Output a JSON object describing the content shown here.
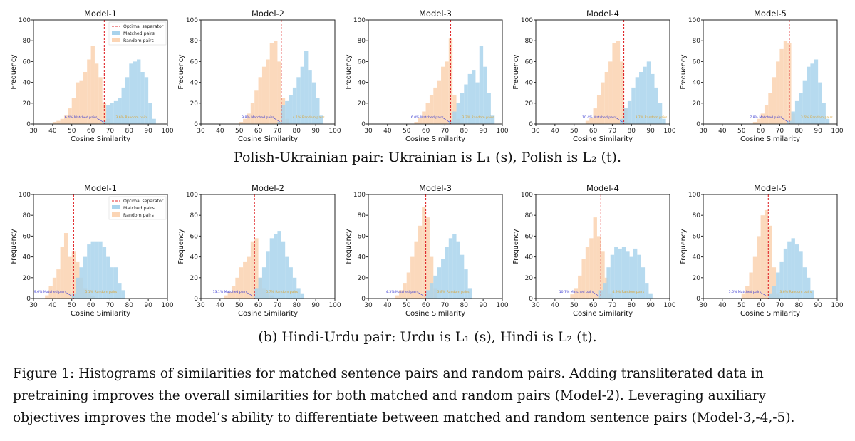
{
  "captions": {
    "top": "Polish-Ukrainian pair: Ukrainian is L₁ (s), Polish is L₂ (t).",
    "bottom": "(b) Hindi-Urdu pair: Urdu is L₁ (s), Hindi is L₂ (t).",
    "figure_line1": "Figure 1: Histograms of similarities for matched sentence pairs and random pairs. Adding transliterated data in",
    "figure_line2": "pretraining improves the overall similarities for both matched and random pairs (Model-2). Leveraging auxiliary",
    "figure_line3": "objectives improves the model’s ability to differentiate between matched and random sentence pairs (Model-3,-4,-5)."
  },
  "legend": {
    "separator": "Optimal separator",
    "matched": "Matched pairs",
    "random": "Random pairs"
  },
  "colors": {
    "matched": "#a9d3ec",
    "random": "#fbd5b5",
    "separator": "#e0282b",
    "annotation": "#3a3ad0",
    "annotation_right": "#d9a53a"
  },
  "chart_data": [
    {
      "type": "bar",
      "title": "Model-1",
      "row": 0,
      "xlabel": "Cosine Similarity",
      "ylabel": "Frequency",
      "xlim": [
        30,
        100
      ],
      "ylim": [
        0,
        100
      ],
      "xticks": [
        30,
        40,
        50,
        60,
        70,
        80,
        90,
        100
      ],
      "yticks": [
        0,
        20,
        40,
        60,
        80,
        100
      ],
      "separator": 67,
      "bin_width": 2,
      "series": [
        {
          "name": "Random pairs",
          "start": 40,
          "values": [
            2,
            3,
            5,
            8,
            15,
            25,
            40,
            42,
            50,
            62,
            75,
            58,
            45,
            20,
            5,
            1
          ]
        },
        {
          "name": "Matched pairs",
          "start": 66,
          "values": [
            3,
            18,
            20,
            22,
            25,
            35,
            45,
            58,
            60,
            62,
            50,
            45,
            20,
            5
          ]
        }
      ],
      "annotations": {
        "left": "6.4% Matched pairs",
        "right": "3.6% Random pairs"
      }
    },
    {
      "type": "bar",
      "title": "Model-2",
      "row": 0,
      "xlabel": "Cosine Similarity",
      "ylabel": "Frequency",
      "xlim": [
        30,
        100
      ],
      "ylim": [
        0,
        100
      ],
      "xticks": [
        30,
        40,
        50,
        60,
        70,
        80,
        90,
        100
      ],
      "yticks": [
        0,
        20,
        40,
        60,
        80,
        100
      ],
      "separator": 72,
      "bin_width": 2,
      "series": [
        {
          "name": "Random pairs",
          "start": 50,
          "values": [
            2,
            5,
            10,
            20,
            32,
            45,
            55,
            62,
            78,
            80,
            60,
            25,
            5
          ]
        },
        {
          "name": "Matched pairs",
          "start": 70,
          "values": [
            2,
            18,
            22,
            28,
            35,
            45,
            55,
            70,
            52,
            40,
            25,
            8
          ]
        }
      ],
      "annotations": {
        "left": "9.8% Matched pairs",
        "right": "4.1% Random pairs"
      }
    },
    {
      "type": "bar",
      "title": "Model-3",
      "row": 0,
      "xlabel": "Cosine Similarity",
      "ylabel": "Frequency",
      "xlim": [
        30,
        100
      ],
      "ylim": [
        0,
        100
      ],
      "xticks": [
        30,
        40,
        50,
        60,
        70,
        80,
        90,
        100
      ],
      "yticks": [
        0,
        20,
        40,
        60,
        80,
        100
      ],
      "separator": 73,
      "bin_width": 2,
      "series": [
        {
          "name": "Random pairs",
          "start": 54,
          "values": [
            2,
            6,
            12,
            20,
            28,
            35,
            42,
            55,
            60,
            82,
            28,
            5
          ]
        },
        {
          "name": "Matched pairs",
          "start": 72,
          "values": [
            3,
            12,
            20,
            30,
            38,
            48,
            52,
            40,
            75,
            55,
            30,
            8
          ]
        }
      ],
      "annotations": {
        "left": "6.0% Matched pairs",
        "right": "3.3% Random pairs"
      }
    },
    {
      "type": "bar",
      "title": "Model-4",
      "row": 0,
      "xlabel": "Cosine Similarity",
      "ylabel": "Frequency",
      "xlim": [
        30,
        100
      ],
      "ylim": [
        0,
        100
      ],
      "xticks": [
        30,
        40,
        50,
        60,
        70,
        80,
        90,
        100
      ],
      "yticks": [
        0,
        20,
        40,
        60,
        80,
        100
      ],
      "separator": 76,
      "bin_width": 2,
      "series": [
        {
          "name": "Random pairs",
          "start": 56,
          "values": [
            3,
            6,
            15,
            28,
            40,
            50,
            60,
            78,
            80,
            60,
            15
          ]
        },
        {
          "name": "Matched pairs",
          "start": 74,
          "values": [
            5,
            15,
            22,
            35,
            45,
            50,
            55,
            60,
            48,
            35,
            20,
            5
          ]
        }
      ],
      "annotations": {
        "left": "10.4% Matched pairs",
        "right": "3.7% Random pairs"
      }
    },
    {
      "type": "bar",
      "title": "Model-5",
      "row": 0,
      "xlabel": "Cosine Similarity",
      "ylabel": "Frequency",
      "xlim": [
        30,
        100
      ],
      "ylim": [
        0,
        100
      ],
      "xticks": [
        30,
        40,
        50,
        60,
        70,
        80,
        90,
        100
      ],
      "yticks": [
        0,
        20,
        40,
        60,
        80,
        100
      ],
      "separator": 75,
      "bin_width": 2,
      "series": [
        {
          "name": "Random pairs",
          "start": 56,
          "values": [
            2,
            5,
            10,
            18,
            30,
            45,
            60,
            72,
            80,
            78,
            10
          ]
        },
        {
          "name": "Matched pairs",
          "start": 74,
          "values": [
            3,
            12,
            22,
            30,
            42,
            55,
            58,
            62,
            40,
            20,
            5
          ]
        }
      ],
      "annotations": {
        "left": "7.8% Matched pairs",
        "right": "3.6% Random pairs"
      }
    },
    {
      "type": "bar",
      "title": "Model-1",
      "row": 1,
      "xlabel": "Cosine Similarity",
      "ylabel": "Frequency",
      "xlim": [
        30,
        100
      ],
      "ylim": [
        0,
        100
      ],
      "xticks": [
        30,
        40,
        50,
        60,
        70,
        80,
        90,
        100
      ],
      "yticks": [
        0,
        20,
        40,
        60,
        80,
        100
      ],
      "separator": 51,
      "bin_width": 2,
      "series": [
        {
          "name": "Random pairs",
          "start": 36,
          "values": [
            3,
            12,
            20,
            28,
            50,
            63,
            40,
            45,
            35,
            20,
            10,
            5,
            2
          ]
        },
        {
          "name": "Matched pairs",
          "start": 50,
          "values": [
            5,
            20,
            30,
            40,
            52,
            55,
            55,
            55,
            50,
            40,
            30,
            30,
            15,
            8
          ]
        }
      ],
      "annotations": {
        "left": "9.6% Matched pairs",
        "right": "5.1% Random pairs"
      }
    },
    {
      "type": "bar",
      "title": "Model-2",
      "row": 1,
      "xlabel": "Cosine Similarity",
      "ylabel": "Frequency",
      "xlim": [
        30,
        100
      ],
      "ylim": [
        0,
        100
      ],
      "xticks": [
        30,
        40,
        50,
        60,
        70,
        80,
        90,
        100
      ],
      "yticks": [
        0,
        20,
        40,
        60,
        80,
        100
      ],
      "separator": 58,
      "bin_width": 2,
      "series": [
        {
          "name": "Random pairs",
          "start": 42,
          "values": [
            3,
            6,
            12,
            20,
            30,
            35,
            40,
            55,
            58,
            20,
            10,
            5,
            3
          ]
        },
        {
          "name": "Matched pairs",
          "start": 58,
          "values": [
            10,
            20,
            30,
            45,
            58,
            62,
            65,
            55,
            40,
            30,
            20,
            10,
            5
          ]
        }
      ],
      "annotations": {
        "left": "13.1% Matched pairs",
        "right": "5.7% Random pairs"
      }
    },
    {
      "type": "bar",
      "title": "Model-3",
      "row": 1,
      "xlabel": "Cosine Similarity",
      "ylabel": "Frequency",
      "xlim": [
        30,
        100
      ],
      "ylim": [
        0,
        100
      ],
      "xticks": [
        30,
        40,
        50,
        60,
        70,
        80,
        90,
        100
      ],
      "yticks": [
        0,
        20,
        40,
        60,
        80,
        100
      ],
      "separator": 60,
      "bin_width": 2,
      "series": [
        {
          "name": "Random pairs",
          "start": 44,
          "values": [
            3,
            8,
            15,
            25,
            40,
            55,
            70,
            88,
            78,
            40,
            10
          ]
        },
        {
          "name": "Matched pairs",
          "start": 60,
          "values": [
            8,
            15,
            22,
            30,
            38,
            50,
            58,
            62,
            55,
            42,
            28,
            10
          ]
        }
      ],
      "annotations": {
        "left": "4.3% Matched pairs",
        "right": "3.8% Random pairs"
      }
    },
    {
      "type": "bar",
      "title": "Model-4",
      "row": 1,
      "xlabel": "Cosine Similarity",
      "ylabel": "Frequency",
      "xlim": [
        30,
        100
      ],
      "ylim": [
        0,
        100
      ],
      "xticks": [
        30,
        40,
        50,
        60,
        70,
        80,
        90,
        100
      ],
      "yticks": [
        0,
        20,
        40,
        60,
        80,
        100
      ],
      "separator": 64,
      "bin_width": 2,
      "series": [
        {
          "name": "Random pairs",
          "start": 48,
          "values": [
            4,
            10,
            22,
            38,
            50,
            58,
            78,
            60,
            45,
            20,
            5
          ]
        },
        {
          "name": "Matched pairs",
          "start": 63,
          "values": [
            8,
            15,
            30,
            42,
            50,
            48,
            50,
            45,
            40,
            48,
            42,
            30,
            15,
            5
          ]
        }
      ],
      "annotations": {
        "left": "10.7% Matched pairs",
        "right": "4.9% Random pairs"
      }
    },
    {
      "type": "bar",
      "title": "Model-5",
      "row": 1,
      "xlabel": "Cosine Similarity",
      "ylabel": "Frequency",
      "xlim": [
        30,
        100
      ],
      "ylim": [
        0,
        100
      ],
      "xticks": [
        30,
        40,
        50,
        60,
        70,
        80,
        90,
        100
      ],
      "yticks": [
        0,
        20,
        40,
        60,
        80,
        100
      ],
      "separator": 64,
      "bin_width": 2,
      "series": [
        {
          "name": "Random pairs",
          "start": 50,
          "values": [
            5,
            12,
            25,
            40,
            60,
            80,
            85,
            70,
            30,
            5
          ]
        },
        {
          "name": "Matched pairs",
          "start": 64,
          "values": [
            5,
            12,
            25,
            35,
            48,
            55,
            58,
            52,
            45,
            30,
            20,
            8
          ]
        }
      ],
      "annotations": {
        "left": "5.6% Matched pairs",
        "right": "3.6% Random pairs"
      }
    }
  ]
}
